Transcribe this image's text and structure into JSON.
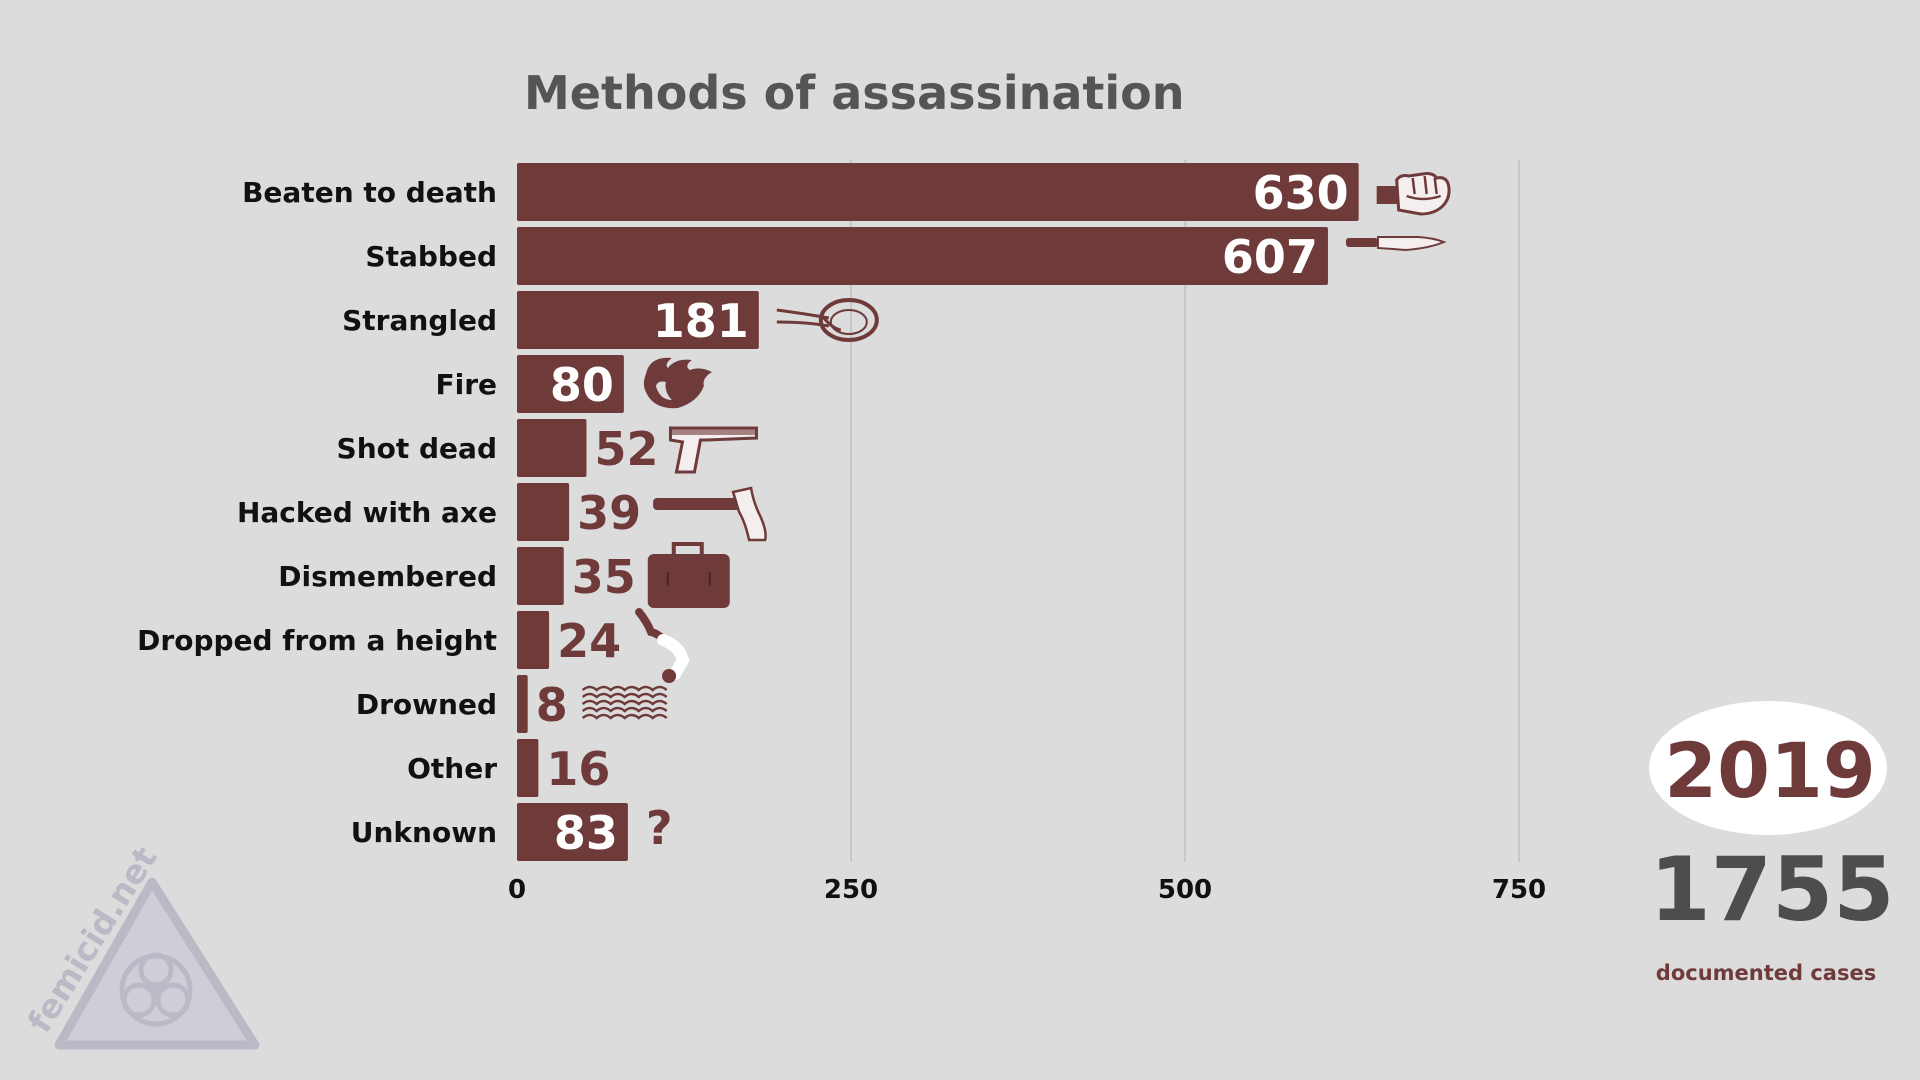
{
  "chart_data": {
    "type": "bar",
    "orientation": "horizontal",
    "title": "Methods of assassination",
    "categories": [
      "Beaten to death",
      "Stabbed",
      "Strangled",
      "Fire",
      "Shot dead",
      "Hacked with axe",
      "Dismembered",
      "Dropped from a height",
      "Drowned",
      "Other",
      "Unknown"
    ],
    "values": [
      630,
      607,
      181,
      80,
      52,
      39,
      35,
      24,
      8,
      16,
      83
    ],
    "icons": [
      "fist-icon",
      "knife-icon",
      "noose-icon",
      "flame-icon",
      "pistol-icon",
      "axe-icon",
      "suitcase-icon",
      "falling-person-icon",
      "waves-icon",
      "",
      "question-mark-icon"
    ],
    "xticks": [
      0,
      250,
      500,
      750
    ],
    "xlim": [
      0,
      750
    ],
    "grid": true,
    "bar_color": "#6f3a3a",
    "year": "2019",
    "total": "1755",
    "total_caption": "documented cases"
  },
  "watermark": {
    "text": "femicid.net",
    "icon": "biohazard-triangle-icon"
  },
  "colors": {
    "background": "#dcdcdc",
    "bar": "#6f3a3a",
    "grid": "#c2c2c2",
    "title": "#555555"
  }
}
